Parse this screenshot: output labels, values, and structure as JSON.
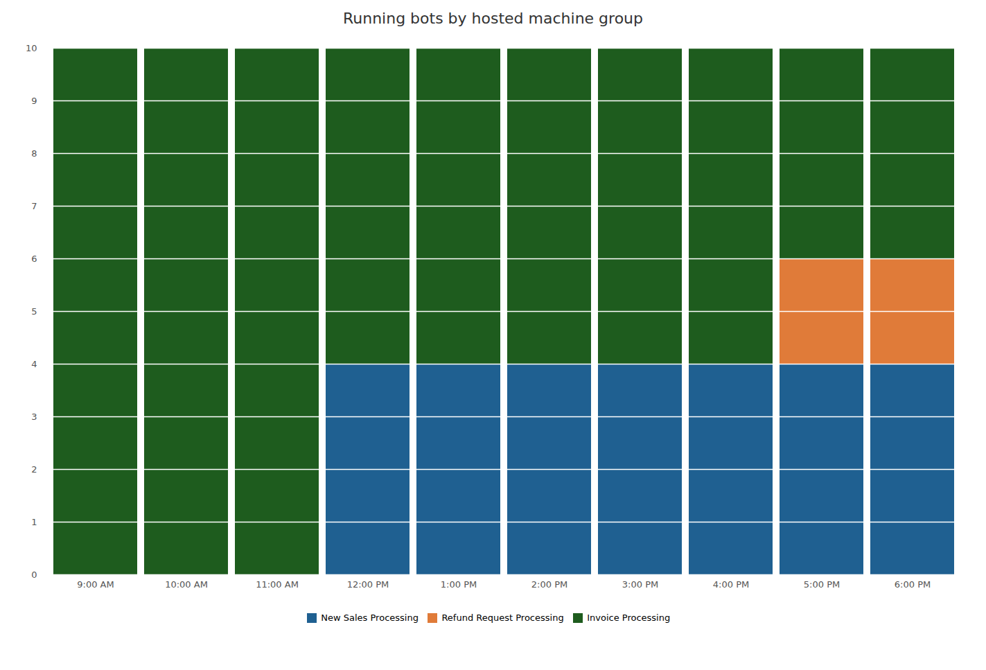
{
  "chart_data": {
    "type": "bar",
    "title": "Running bots by hosted machine group",
    "categories": [
      "9:00 AM",
      "10:00 AM",
      "11:00 AM",
      "12:00 PM",
      "1:00 PM",
      "2:00 PM",
      "3:00 PM",
      "4:00 PM",
      "5:00 PM",
      "6:00 PM"
    ],
    "series": [
      {
        "name": "New Sales Processing",
        "color": "#1f6091",
        "values": [
          0,
          0,
          0,
          4,
          4,
          4,
          4,
          4,
          4,
          4
        ]
      },
      {
        "name": "Refund Request Processing",
        "color": "#e07b39",
        "values": [
          0,
          0,
          0,
          0,
          0,
          0,
          0,
          0,
          2,
          2
        ]
      },
      {
        "name": "Invoice Processing",
        "color": "#1e5c1e",
        "values": [
          10,
          10,
          10,
          6,
          6,
          6,
          6,
          6,
          4,
          4
        ]
      }
    ],
    "stacked": true,
    "ylim": [
      0,
      10
    ],
    "yticks": [
      0,
      1,
      2,
      3,
      4,
      5,
      6,
      7,
      8,
      9,
      10
    ],
    "grid": true,
    "legend": "bottom"
  }
}
